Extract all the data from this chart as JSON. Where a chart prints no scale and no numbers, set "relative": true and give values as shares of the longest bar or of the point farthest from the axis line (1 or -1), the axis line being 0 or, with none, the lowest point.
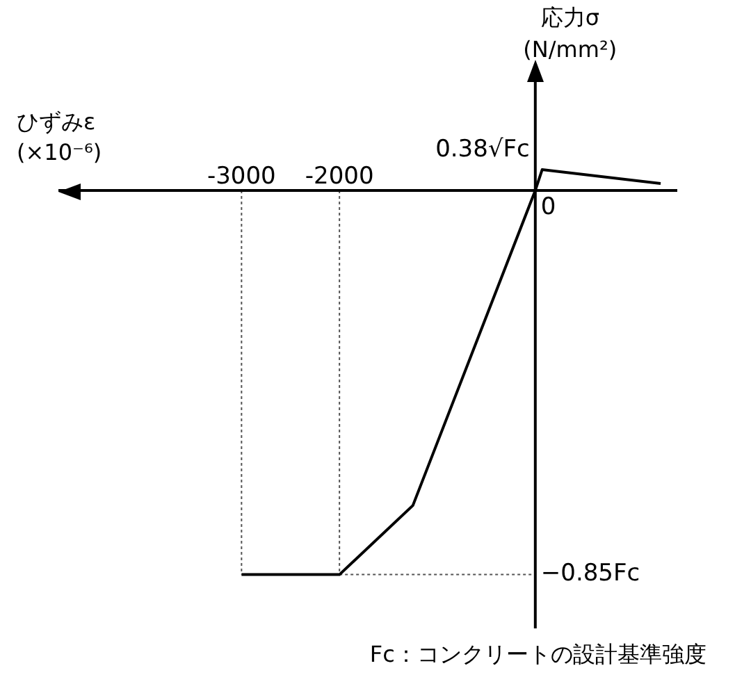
{
  "chart_data": {
    "type": "line",
    "xlabel": "ひずみε (×10⁻⁶)",
    "ylabel": "応力σ (N/mm²)",
    "relative": true,
    "xlim": [
      -4870,
      1450
    ],
    "xticks": [
      -3000,
      -2000
    ],
    "series": [
      {
        "color": "#000000",
        "x": [
          -3000,
          -2000,
          -1250,
          0,
          70,
          1280
        ],
        "values": [
          -1,
          -1,
          -0.82,
          0,
          0.054,
          0.018
        ],
        "line_style": "solid"
      },
      {
        "color": "#555555",
        "x": [
          -3000,
          -3000
        ],
        "values": [
          0,
          -1
        ],
        "line_style": "dotted"
      },
      {
        "color": "#555555",
        "x": [
          -2000,
          -2000
        ],
        "values": [
          0,
          -1
        ],
        "line_style": "dotted"
      },
      {
        "color": "#555555",
        "x": [
          -2000,
          0
        ],
        "values": [
          -1,
          -1
        ],
        "line_style": "dotted"
      }
    ],
    "marker": "none",
    "legend": false,
    "annotations": [
      "0.38√Fc",
      "0",
      "−0.85Fc",
      "Fc：コンクリートの設計基準強度"
    ]
  }
}
